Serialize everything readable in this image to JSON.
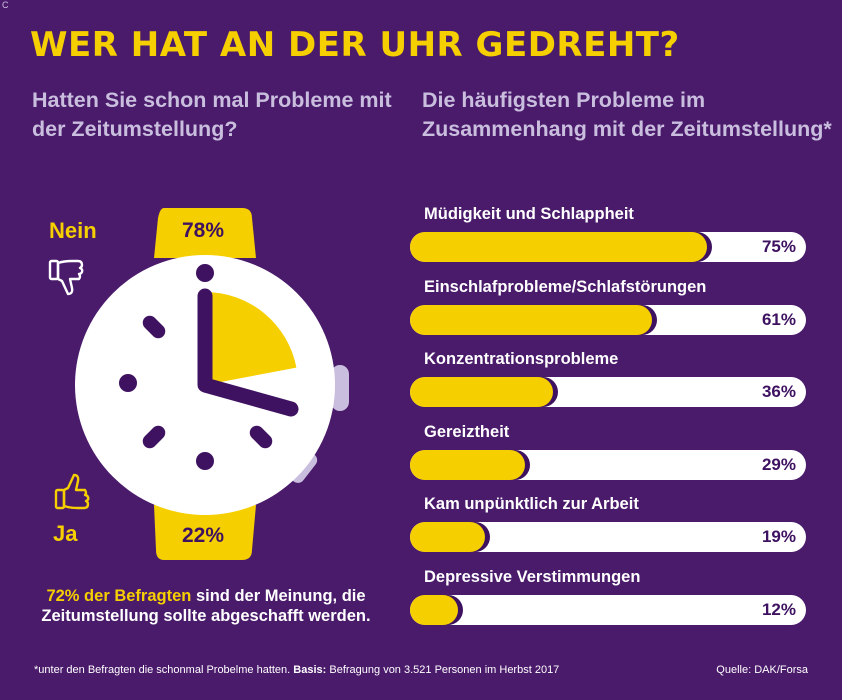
{
  "corner_mark": "C",
  "title": "WER HAT AN DER UHR GEDREHT?",
  "left": {
    "subtitle": "Hatten Sie schon mal Probleme mit der Zeitumstellung?",
    "no_label": "Nein",
    "no_pct": "78%",
    "yes_label": "Ja",
    "yes_pct": "22%",
    "note_highlight": "72% der Befragten",
    "note_rest": "sind der Meinung, die Zeitumstellung sollte abgeschafft werden."
  },
  "right": {
    "subtitle": "Die häufigsten Probleme im Zusammenhang mit der Zeitumstellung*"
  },
  "chart_data": [
    {
      "type": "pie",
      "title": "Hatten Sie schon mal Probleme mit der Zeitumstellung?",
      "categories": [
        "Nein",
        "Ja"
      ],
      "values": [
        78,
        22
      ],
      "unit": "%"
    },
    {
      "type": "bar",
      "orientation": "horizontal",
      "title": "Die häufigsten Probleme im Zusammenhang mit der Zeitumstellung*",
      "categories": [
        "Müdigkeit und Schlappheit",
        "Einschlafprobleme/Schlafstörungen",
        "Konzentrationsprobleme",
        "Gereiztheit",
        "Kam unpünktlich zur Arbeit",
        "Depressive Verstimmungen"
      ],
      "values": [
        75,
        61,
        36,
        29,
        19,
        12
      ],
      "labels": [
        "75%",
        "61%",
        "36%",
        "29%",
        "19%",
        "12%"
      ],
      "xlim": [
        0,
        100
      ]
    }
  ],
  "footer": {
    "note": "*unter den Befragten die schonmal Probelme hatten.",
    "basis_label": "Basis:",
    "basis_text": "Befragung von 3.521 Personen im Herbst 2017",
    "source": "Quelle: DAK/Forsa"
  },
  "colors": {
    "background": "#4a1a6b",
    "accent": "#f6cf00",
    "dark": "#3e1260",
    "light": "#c9bede"
  }
}
